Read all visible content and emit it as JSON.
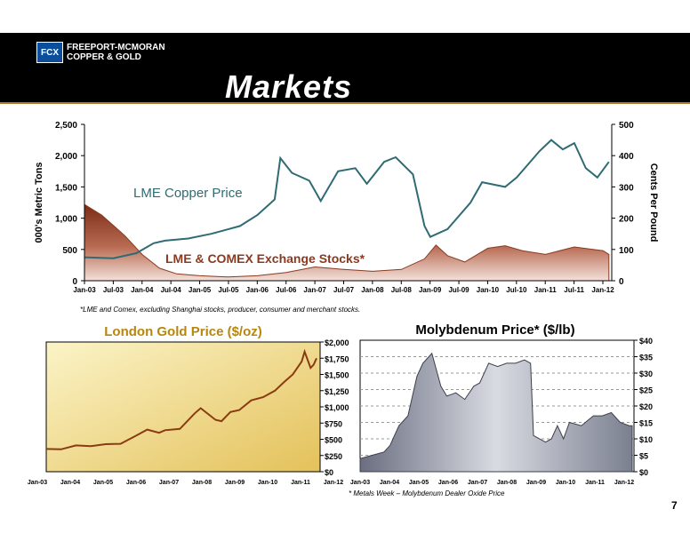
{
  "header": {
    "logo_mark": "FCX",
    "logo_line1": "FREEPORT-MCMORAN",
    "logo_line2": "COPPER & GOLD",
    "title": "Markets"
  },
  "page_number": "7",
  "chart_data": [
    {
      "type": "line",
      "title": "",
      "ylabel": "000's Metric Tons",
      "y2label": "Cents Per Pound",
      "ylim": [
        0,
        2500
      ],
      "y2lim": [
        0,
        500
      ],
      "yticks": [
        "0",
        "500",
        "1,000",
        "1,500",
        "2,000",
        "2,500"
      ],
      "y2ticks": [
        "0",
        "100",
        "200",
        "300",
        "400",
        "500"
      ],
      "xticks": [
        "Jan-03",
        "Jul-03",
        "Jan-04",
        "Jul-04",
        "Jan-05",
        "Jul-05",
        "Jan-06",
        "Jul-06",
        "Jan-07",
        "Jul-07",
        "Jan-08",
        "Jul-08",
        "Jan-09",
        "Jul-09",
        "Jan-10",
        "Jul-10",
        "Jan-11",
        "Jul-11",
        "Jan-12"
      ],
      "series": [
        {
          "name": "LME Copper Price",
          "axis": "right",
          "color": "#2f6b73",
          "t": [
            2003.0,
            2003.5,
            2003.9,
            2004.2,
            2004.4,
            2004.8,
            2005.2,
            2005.7,
            2006.0,
            2006.3,
            2006.4,
            2006.6,
            2006.9,
            2007.1,
            2007.4,
            2007.7,
            2007.9,
            2008.2,
            2008.4,
            2008.7,
            2008.9,
            2009.0,
            2009.3,
            2009.7,
            2009.9,
            2010.3,
            2010.5,
            2010.9,
            2011.1,
            2011.3,
            2011.5,
            2011.7,
            2011.9,
            2012.1
          ],
          "v": [
            75,
            72,
            88,
            120,
            128,
            135,
            150,
            175,
            210,
            260,
            392,
            345,
            320,
            255,
            350,
            360,
            310,
            380,
            395,
            340,
            175,
            140,
            165,
            250,
            315,
            300,
            330,
            415,
            450,
            420,
            440,
            360,
            330,
            380
          ]
        },
        {
          "name": "LME & COMEX Exchange Stocks*",
          "axis": "left",
          "type": "area",
          "color": "#8a3a20",
          "t": [
            2003.0,
            2003.3,
            2003.7,
            2004.0,
            2004.3,
            2004.6,
            2005.0,
            2005.5,
            2006.0,
            2006.5,
            2007.0,
            2007.5,
            2008.0,
            2008.5,
            2008.9,
            2009.1,
            2009.3,
            2009.6,
            2010.0,
            2010.3,
            2010.6,
            2011.0,
            2011.5,
            2012.0,
            2012.1
          ],
          "v": [
            1220,
            1050,
            720,
            420,
            200,
            110,
            80,
            60,
            80,
            130,
            220,
            180,
            150,
            180,
            350,
            570,
            400,
            300,
            520,
            560,
            480,
            420,
            540,
            480,
            420
          ]
        }
      ],
      "footnote": "*LME and Comex, excluding Shanghai stocks, producer, consumer and merchant stocks."
    },
    {
      "type": "line",
      "title": "London Gold Price ($/oz)",
      "ylim": [
        0,
        2000
      ],
      "yticks": [
        "$0",
        "$250",
        "$500",
        "$750",
        "$1,000",
        "$1,250",
        "$1,500",
        "$1,750",
        "$2,000"
      ],
      "xticks": [
        "Jan-03",
        "Jan-04",
        "Jan-05",
        "Jan-06",
        "Jan-07",
        "Jan-08",
        "Jan-09",
        "Jan-10",
        "Jan-11",
        "Jan-12"
      ],
      "series": [
        {
          "name": "",
          "color": "#8b3a12",
          "t": [
            2003.0,
            2003.5,
            2004.0,
            2004.5,
            2005.0,
            2005.5,
            2006.0,
            2006.4,
            2006.8,
            2007.0,
            2007.5,
            2008.0,
            2008.2,
            2008.7,
            2008.9,
            2009.2,
            2009.5,
            2009.9,
            2010.3,
            2010.7,
            2011.0,
            2011.3,
            2011.6,
            2011.7,
            2011.9,
            2012.0,
            2012.1
          ],
          "v": [
            350,
            345,
            405,
            395,
            425,
            430,
            550,
            650,
            600,
            640,
            660,
            900,
            980,
            800,
            780,
            920,
            950,
            1100,
            1150,
            1250,
            1380,
            1500,
            1700,
            1850,
            1600,
            1650,
            1750
          ]
        }
      ]
    },
    {
      "type": "area",
      "title": "Molybdenum Price* ($/lb)",
      "ylim": [
        0,
        40
      ],
      "yticks": [
        "$0",
        "$5",
        "$10",
        "$15",
        "$20",
        "$25",
        "$30",
        "$35",
        "$40"
      ],
      "xticks": [
        "Jan-03",
        "Jan-04",
        "Jan-05",
        "Jan-06",
        "Jan-07",
        "Jan-08",
        "Jan-09",
        "Jan-10",
        "Jan-11",
        "Jan-12"
      ],
      "series": [
        {
          "name": "",
          "color": "#6d7280",
          "t": [
            2003.0,
            2003.4,
            2003.8,
            2004.0,
            2004.3,
            2004.6,
            2004.9,
            2005.1,
            2005.4,
            2005.7,
            2005.9,
            2006.2,
            2006.5,
            2006.8,
            2007.0,
            2007.3,
            2007.6,
            2007.9,
            2008.2,
            2008.5,
            2008.7,
            2008.8,
            2009.2,
            2009.4,
            2009.6,
            2009.8,
            2010.0,
            2010.4,
            2010.8,
            2011.1,
            2011.4,
            2011.7,
            2012.0,
            2012.1
          ],
          "v": [
            4,
            5,
            6,
            8,
            14,
            17,
            29,
            33,
            36,
            26,
            23,
            24,
            22,
            26,
            27,
            33,
            32,
            33,
            33,
            34,
            33,
            11,
            9,
            10,
            14,
            10,
            15,
            14,
            17,
            17,
            18,
            15,
            14,
            14
          ]
        }
      ],
      "footnote": "* Metals Week – Molybdenum Dealer Oxide Price"
    }
  ]
}
